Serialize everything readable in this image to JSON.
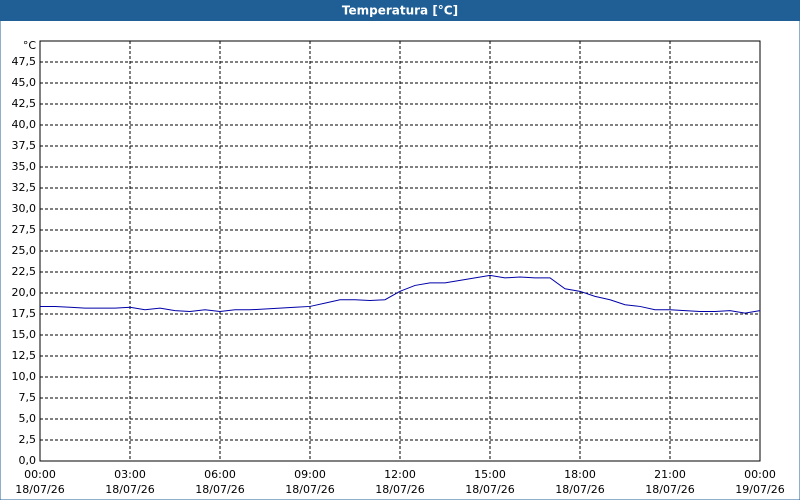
{
  "window_title": "Temperatura [°C]",
  "chart_data": {
    "type": "line",
    "y_unit": "°C",
    "x": [
      0,
      0.5,
      1,
      1.5,
      2,
      2.5,
      3,
      3.5,
      4,
      4.5,
      5,
      5.5,
      6,
      6.5,
      7,
      7.5,
      8,
      8.5,
      9,
      9.5,
      10,
      10.5,
      11,
      11.5,
      12,
      12.5,
      13,
      13.5,
      14,
      14.5,
      15,
      15.5,
      16,
      16.5,
      17,
      17.5,
      18,
      18.5,
      19,
      19.5,
      20,
      20.5,
      21,
      21.5,
      22,
      22.5,
      23,
      23.5,
      24
    ],
    "series": [
      {
        "color": "#0000a8",
        "values": [
          18.4,
          18.4,
          18.3,
          18.2,
          18.2,
          18.2,
          18.3,
          18.0,
          18.2,
          17.9,
          17.8,
          18.0,
          17.8,
          18.0,
          18.0,
          18.1,
          18.2,
          18.3,
          18.4,
          18.8,
          19.2,
          19.2,
          19.1,
          19.2,
          20.2,
          20.9,
          21.2,
          21.2,
          21.5,
          21.8,
          22.1,
          21.8,
          21.9,
          21.8,
          21.8,
          20.5,
          20.2,
          19.6,
          19.2,
          18.6,
          18.4,
          18.0,
          18.0,
          17.9,
          17.8,
          17.8,
          17.9,
          17.6,
          17.9
        ]
      }
    ],
    "xlim": [
      0,
      24
    ],
    "xticks": [
      {
        "value": 0,
        "label": "00:00"
      },
      {
        "value": 3,
        "label": "03:00"
      },
      {
        "value": 6,
        "label": "06:00"
      },
      {
        "value": 9,
        "label": "09:00"
      },
      {
        "value": 12,
        "label": "12:00"
      },
      {
        "value": 15,
        "label": "15:00"
      },
      {
        "value": 18,
        "label": "18:00"
      },
      {
        "value": 21,
        "label": "21:00"
      },
      {
        "value": 24,
        "label": "00:00"
      }
    ],
    "xtick_dates": [
      "18/07/26",
      "18/07/26",
      "18/07/26",
      "18/07/26",
      "18/07/26",
      "18/07/26",
      "18/07/26",
      "18/07/26",
      "19/07/26"
    ],
    "ylim": [
      0,
      50
    ],
    "yticks": [
      {
        "value": 0,
        "label": "0,0"
      },
      {
        "value": 2.5,
        "label": "2,5"
      },
      {
        "value": 5,
        "label": "5,0"
      },
      {
        "value": 7.5,
        "label": "7,5"
      },
      {
        "value": 10,
        "label": "10,0"
      },
      {
        "value": 12.5,
        "label": "12,5"
      },
      {
        "value": 15,
        "label": "15,0"
      },
      {
        "value": 17.5,
        "label": "17,5"
      },
      {
        "value": 20,
        "label": "20,0"
      },
      {
        "value": 22.5,
        "label": "22,5"
      },
      {
        "value": 25,
        "label": "25,0"
      },
      {
        "value": 27.5,
        "label": "27,5"
      },
      {
        "value": 30,
        "label": "30,0"
      },
      {
        "value": 32.5,
        "label": "32,5"
      },
      {
        "value": 35,
        "label": "35,0"
      },
      {
        "value": 37.5,
        "label": "37,5"
      },
      {
        "value": 40,
        "label": "40,0"
      },
      {
        "value": 42.5,
        "label": "42,5"
      },
      {
        "value": 45,
        "label": "45,0"
      },
      {
        "value": 47.5,
        "label": "47,5"
      }
    ],
    "grid": true
  }
}
